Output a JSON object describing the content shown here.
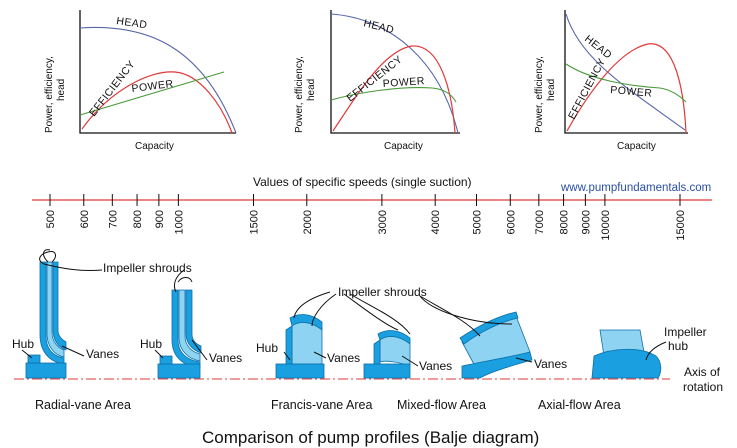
{
  "charts": [
    {
      "y_label_line1": "Power, efficiency,",
      "y_label_line2": "head",
      "x_label": "Capacity",
      "head": "HEAD",
      "efficiency": "EFFICIENCY",
      "power": "POWER"
    },
    {
      "y_label_line1": "Power, efficiency,",
      "y_label_line2": "head",
      "x_label": "Capacity",
      "head": "HEAD",
      "efficiency": "EFFICIENCY",
      "power": "POWER"
    },
    {
      "y_label_line1": "Power, efficiency,",
      "y_label_line2": "head",
      "x_label": "Capacity",
      "head": "HEAD",
      "efficiency": "EFFICIENCY",
      "power": "POWER"
    }
  ],
  "speed_scale": {
    "title": "Values of specific speeds (single suction)",
    "website": "www.pumpfundamentals.com",
    "ticks": [
      {
        "label": "500",
        "value": 500
      },
      {
        "label": "600",
        "value": 600
      },
      {
        "label": "700",
        "value": 700
      },
      {
        "label": "800",
        "value": 800
      },
      {
        "label": "900",
        "value": 900
      },
      {
        "label": "1000",
        "value": 1000
      },
      {
        "label": "1500",
        "value": 1500
      },
      {
        "label": "2000",
        "value": 2000
      },
      {
        "label": "3000",
        "value": 3000
      },
      {
        "label": "4000",
        "value": 4000
      },
      {
        "label": "5000",
        "value": 5000
      },
      {
        "label": "6000",
        "value": 6000
      },
      {
        "label": "7000",
        "value": 7000
      },
      {
        "label": "8000",
        "value": 8000
      },
      {
        "label": "9000",
        "value": 9000
      },
      {
        "label": "10000",
        "value": 10000
      },
      {
        "label": "15000",
        "value": 15000
      }
    ]
  },
  "annotations": {
    "impeller_shrouds_1": "Impeller shrouds",
    "impeller_shrouds_2": "Impeller shrouds",
    "hub_1": "Hub",
    "hub_2": "Hub",
    "hub_3": "Hub",
    "vanes_1": "Vanes",
    "vanes_2": "Vanes",
    "vanes_3": "Vanes",
    "vanes_4": "Vanes",
    "vanes_5": "Vanes",
    "impeller_hub_line1": "Impeller",
    "impeller_hub_line2": "hub",
    "axis_line1": "Axis of",
    "axis_line2": "rotation"
  },
  "areas": {
    "radial": "Radial-vane Area",
    "francis": "Francis-vane Area",
    "mixed": "Mixed-flow Area",
    "axial": "Axial-flow Area"
  },
  "caption": "Comparison of pump profiles (Balje diagram)",
  "colors": {
    "head": "#5566aa",
    "efficiency": "#e03a3a",
    "power": "#4a9a3a",
    "scale": "#e03a3a",
    "pump": "#1a9fe0"
  }
}
